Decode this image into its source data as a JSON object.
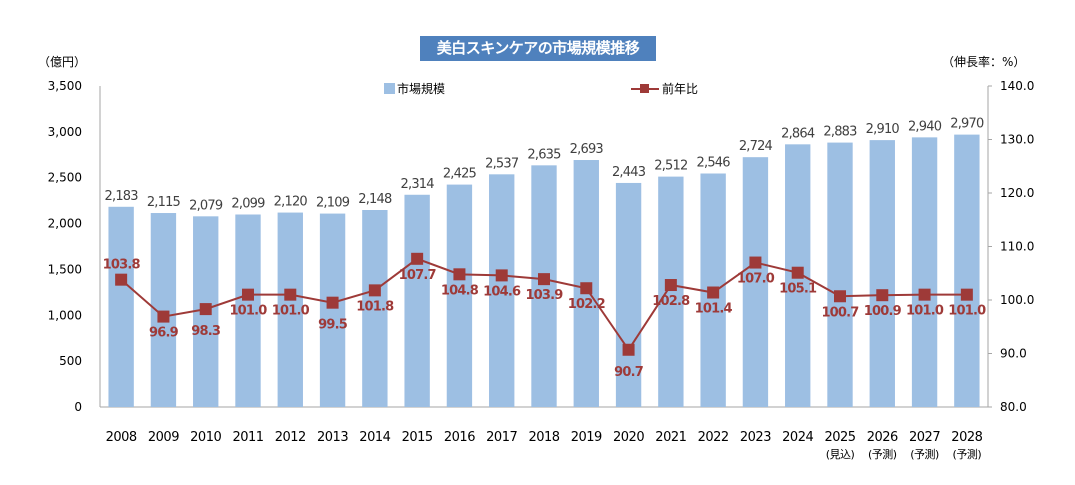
{
  "chart_data": {
    "type": "bar+line",
    "title": "美白スキンケアの市場規模推移",
    "y_left_label": "（億円）",
    "y_right_label": "（伸長率：%）",
    "categories": [
      "2008",
      "2009",
      "2010",
      "2011",
      "2012",
      "2013",
      "2014",
      "2015",
      "2016",
      "2017",
      "2018",
      "2019",
      "2020",
      "2021",
      "2022",
      "2023",
      "2024",
      "2025",
      "2026",
      "2027",
      "2028"
    ],
    "category_notes": [
      "",
      "",
      "",
      "",
      "",
      "",
      "",
      "",
      "",
      "",
      "",
      "",
      "",
      "",
      "",
      "",
      "",
      "(見込)",
      "(予測)",
      "(予測)",
      "(予測)"
    ],
    "series": [
      {
        "name": "市場規模",
        "type": "bar",
        "axis": "left",
        "color": "#9dbfe3",
        "values": [
          2183,
          2115,
          2079,
          2099,
          2120,
          2109,
          2148,
          2314,
          2425,
          2537,
          2635,
          2693,
          2443,
          2512,
          2546,
          2724,
          2864,
          2883,
          2910,
          2940,
          2970
        ],
        "labels": [
          "2,183",
          "2,115",
          "2,079",
          "2,099",
          "2,120",
          "2,109",
          "2,148",
          "2,314",
          "2,425",
          "2,537",
          "2,635",
          "2,693",
          "2,443",
          "2,512",
          "2,546",
          "2,724",
          "2,864",
          "2,883",
          "2,910",
          "2,940",
          "2,970"
        ]
      },
      {
        "name": "前年比",
        "type": "line",
        "axis": "right",
        "color": "#9e3a38",
        "values": [
          103.8,
          96.9,
          98.3,
          101.0,
          101.0,
          99.5,
          101.8,
          107.7,
          104.8,
          104.6,
          103.9,
          102.2,
          90.7,
          102.8,
          101.4,
          107.0,
          105.1,
          100.7,
          100.9,
          101.0,
          101.0
        ],
        "labels": [
          "103.8",
          "96.9",
          "98.3",
          "101.0",
          "101.0",
          "99.5",
          "101.8",
          "107.7",
          "104.8",
          "104.6",
          "103.9",
          "102.2",
          "90.7",
          "102.8",
          "101.4",
          "107.0",
          "105.1",
          "100.7",
          "100.9",
          "101.0",
          "101.0"
        ]
      }
    ],
    "y_left": {
      "range": [
        0,
        3500
      ],
      "ticks": [
        "0",
        "500",
        "1,000",
        "1,500",
        "2,000",
        "2,500",
        "3,000",
        "3,500"
      ]
    },
    "y_right": {
      "range": [
        80,
        140
      ],
      "ticks": [
        "80.0",
        "90.0",
        "100.0",
        "110.0",
        "120.0",
        "130.0",
        "140.0"
      ]
    },
    "legend_position": "top",
    "grid": false
  }
}
